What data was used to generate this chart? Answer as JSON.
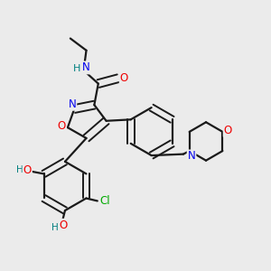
{
  "background_color": "#ebebeb",
  "bond_color": "#1a1a1a",
  "atom_colors": {
    "C": "#1a1a1a",
    "N": "#0000ee",
    "O": "#ee0000",
    "Cl": "#00aa00",
    "H": "#008080"
  },
  "figsize": [
    3.0,
    3.0
  ],
  "dpi": 100
}
